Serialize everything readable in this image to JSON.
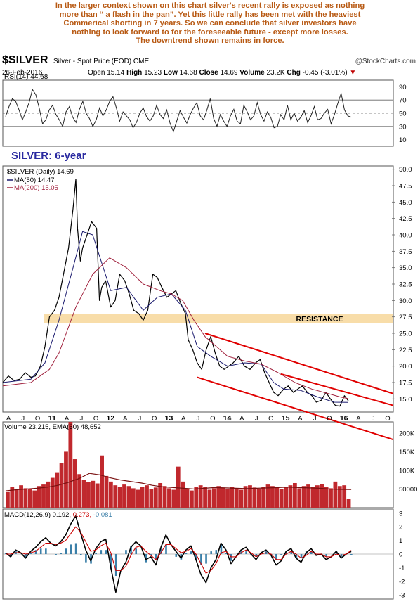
{
  "commentary": {
    "lines": [
      "In the larger context shown on this chart silver's recent rally is exposed as nothing",
      "more than “ a flash in the pan”. Yet this little rally has been met with the heaviest",
      "Commerical shorting in 7 years. So we can conclude that silver investors have",
      "nothing to look forward to for the foreseeable future - except more losses.",
      "The downtrend shown remains in force."
    ]
  },
  "header": {
    "symbol": "$SILVER",
    "description": "Silver - Spot Price (EOD)  CME",
    "copyright": "@StockCharts.com",
    "date": "26-Feb-2016",
    "open_label": "Open",
    "open": "15.14",
    "high_label": "High",
    "high": "15.23",
    "low_label": "Low",
    "low": "14.68",
    "close_label": "Close",
    "close": "14.69",
    "volume_label": "Volume",
    "volume": "23.2K",
    "chg_label": "Chg",
    "chg": "-0.45 (-3.01%)",
    "chg_marker": "▼"
  },
  "colors": {
    "commentary": "#b85a14",
    "price": "#000000",
    "ma50": "#1a1a6e",
    "ma200": "#a0203c",
    "channel": "#e00000",
    "resistance": "#f7d79a",
    "rsi_fill": "#808080",
    "volume": "#c0282d",
    "volume_ema": "#7a1010",
    "macd": "#000000",
    "macd_signal": "#cc0000",
    "macd_hist": "#3b7fa8",
    "title": "#2a2aa0"
  },
  "chart_data": [
    {
      "type": "line",
      "panel": "rsi",
      "legend": "RSI(14) 44.68",
      "y_ticks": [
        90,
        70,
        50,
        30,
        10
      ],
      "ylim": [
        0,
        100
      ],
      "reference_lines": [
        70,
        50,
        30
      ],
      "series": [
        {
          "values": [
            45,
            60,
            72,
            68,
            55,
            40,
            52,
            66,
            86,
            78,
            58,
            34,
            40,
            55,
            62,
            48,
            40,
            30,
            52,
            60,
            44,
            36,
            56,
            68,
            50,
            42,
            30,
            40,
            58,
            46,
            55,
            68,
            75,
            58,
            38,
            52,
            46,
            40,
            28,
            36,
            50,
            58,
            45,
            38,
            46,
            62,
            48,
            42,
            55,
            35,
            22,
            38,
            54,
            44,
            35,
            48,
            58,
            66,
            46,
            40,
            55,
            72,
            42,
            30,
            48,
            38,
            30,
            46,
            56,
            38,
            34,
            62,
            52,
            40,
            46,
            66,
            48,
            38,
            52,
            44,
            28,
            30,
            48,
            40,
            62,
            40,
            50,
            38,
            44,
            54,
            36,
            46,
            60,
            40,
            42,
            50,
            56,
            34,
            48,
            65,
            80,
            55,
            46,
            44
          ]
        }
      ]
    },
    {
      "type": "line",
      "panel": "price",
      "title": "SILVER: 6-year",
      "legend": [
        "$SILVER (Daily) 14.69",
        "MA(50) 14.47",
        "MA(200) 15.05"
      ],
      "annotation": "RESISTANCE",
      "resistance_band": [
        26.5,
        28.0
      ],
      "y_ticks": [
        50.0,
        47.5,
        45.0,
        42.5,
        40.0,
        37.5,
        35.0,
        32.5,
        30.0,
        27.5,
        25.0,
        22.5,
        20.0,
        17.5,
        15.0
      ],
      "ylim": [
        13.0,
        50.5
      ],
      "x_labels": [
        "A",
        "J",
        "O",
        "11",
        "A",
        "J",
        "O",
        "12",
        "A",
        "J",
        "O",
        "13",
        "A",
        "J",
        "O",
        "14",
        "A",
        "J",
        "O",
        "15",
        "A",
        "J",
        "O",
        "16",
        "A",
        "J",
        "O"
      ],
      "x_label_major": [
        "11",
        "12",
        "13",
        "14",
        "15",
        "16"
      ],
      "x_range": [
        2010.0,
        2016.95
      ],
      "series": [
        {
          "name": "$SILVER",
          "x": [
            2010.0,
            2010.1,
            2010.2,
            2010.3,
            2010.4,
            2010.5,
            2010.58,
            2010.67,
            2010.75,
            2010.83,
            2010.92,
            2011.0,
            2011.08,
            2011.17,
            2011.25,
            2011.3,
            2011.33,
            2011.38,
            2011.42,
            2011.5,
            2011.58,
            2011.67,
            2011.72,
            2011.76,
            2011.83,
            2011.92,
            2012.0,
            2012.08,
            2012.17,
            2012.25,
            2012.33,
            2012.42,
            2012.5,
            2012.58,
            2012.67,
            2012.75,
            2012.83,
            2012.92,
            2013.0,
            2013.08,
            2013.17,
            2013.25,
            2013.3,
            2013.38,
            2013.46,
            2013.54,
            2013.62,
            2013.7,
            2013.78,
            2013.86,
            2013.94,
            2014.02,
            2014.1,
            2014.2,
            2014.3,
            2014.4,
            2014.5,
            2014.58,
            2014.66,
            2014.74,
            2014.82,
            2014.9,
            2015.0,
            2015.08,
            2015.17,
            2015.25,
            2015.33,
            2015.42,
            2015.5,
            2015.58,
            2015.67,
            2015.75,
            2015.83,
            2015.92,
            2016.0,
            2016.08,
            2016.15
          ],
          "y": [
            17.5,
            18.5,
            17.8,
            18.0,
            19.0,
            18.3,
            18.5,
            20.0,
            23.0,
            27.5,
            28.5,
            30.5,
            34.0,
            38.0,
            44.0,
            48.5,
            41.0,
            36.0,
            38.0,
            40.0,
            42.0,
            41.0,
            30.0,
            32.0,
            33.0,
            29.0,
            30.0,
            34.0,
            33.0,
            31.0,
            28.5,
            28.0,
            27.0,
            28.5,
            34.0,
            33.5,
            32.0,
            30.5,
            31.0,
            31.5,
            29.5,
            28.0,
            24.0,
            22.5,
            20.5,
            19.5,
            22.5,
            24.5,
            22.0,
            20.0,
            19.5,
            20.0,
            20.5,
            21.5,
            20.0,
            19.5,
            20.5,
            21.0,
            19.0,
            17.5,
            16.0,
            15.5,
            16.5,
            17.0,
            16.0,
            16.5,
            17.0,
            16.0,
            15.5,
            14.5,
            14.8,
            16.0,
            15.0,
            14.0,
            13.9,
            15.5,
            14.69
          ]
        },
        {
          "name": "MA(50)",
          "x": [
            2010.0,
            2010.5,
            2010.75,
            2011.0,
            2011.25,
            2011.42,
            2011.6,
            2011.75,
            2011.92,
            2012.2,
            2012.5,
            2012.75,
            2013.0,
            2013.25,
            2013.46,
            2013.7,
            2014.0,
            2014.3,
            2014.6,
            2014.82,
            2015.0,
            2015.3,
            2015.6,
            2015.9,
            2016.15
          ],
          "y": [
            17.5,
            18.0,
            20.5,
            27.0,
            35.0,
            40.5,
            40.0,
            36.0,
            31.5,
            32.0,
            28.5,
            30.5,
            31.0,
            28.5,
            23.0,
            21.5,
            20.0,
            20.5,
            20.3,
            17.5,
            16.5,
            16.3,
            15.3,
            14.5,
            14.47
          ]
        },
        {
          "name": "MA(200)",
          "x": [
            2010.0,
            2010.5,
            2010.83,
            2011.0,
            2011.3,
            2011.6,
            2011.9,
            2012.2,
            2012.5,
            2012.8,
            2013.0,
            2013.2,
            2013.4,
            2013.6,
            2013.8,
            2014.0,
            2014.3,
            2014.6,
            2014.9,
            2015.2,
            2015.5,
            2015.8,
            2016.0,
            2016.15
          ],
          "y": [
            17.0,
            17.5,
            19.5,
            22.0,
            29.0,
            34.0,
            36.5,
            35.0,
            32.5,
            31.5,
            31.0,
            30.0,
            27.0,
            24.5,
            23.0,
            21.5,
            20.8,
            20.3,
            19.0,
            17.5,
            16.5,
            15.8,
            15.3,
            15.05
          ]
        }
      ],
      "channel_lines": [
        {
          "x": [
            2013.6,
            2016.95
          ],
          "y": [
            25.0,
            15.8
          ]
        },
        {
          "x": [
            2013.46,
            2016.95
          ],
          "y": [
            18.3,
            8.8
          ]
        },
        {
          "x": [
            2014.95,
            2016.95
          ],
          "y": [
            18.8,
            14.0
          ]
        }
      ]
    },
    {
      "type": "bar",
      "panel": "volume",
      "legend": "Volume 23,215, EMA(60) 48,652",
      "y_ticks": [
        "200K",
        "150K",
        "100K",
        "50000"
      ],
      "y_tick_values": [
        200000,
        150000,
        100000,
        50000
      ],
      "ylim": [
        0,
        230000
      ],
      "values": [
        42000,
        55000,
        48000,
        60000,
        52000,
        50000,
        46000,
        58000,
        62000,
        70000,
        80000,
        95000,
        120000,
        150000,
        230000,
        130000,
        90000,
        75000,
        68000,
        72000,
        65000,
        140000,
        85000,
        70000,
        60000,
        55000,
        62000,
        58000,
        52000,
        48000,
        55000,
        60000,
        50000,
        54000,
        66000,
        58000,
        52000,
        48000,
        110000,
        70000,
        52000,
        46000,
        56000,
        60000,
        55000,
        48000,
        52000,
        58000,
        54000,
        50000,
        56000,
        52000,
        48000,
        58000,
        60000,
        54000,
        50000,
        56000,
        62000,
        58000,
        54000,
        50000,
        56000,
        60000,
        66000,
        52000,
        58000,
        62000,
        55000,
        60000,
        64000,
        56000,
        52000,
        70000,
        58000,
        60000,
        23215
      ],
      "ema_values": [
        45000,
        48000,
        50000,
        52000,
        55000,
        60000,
        68000,
        78000,
        92000,
        88000,
        80000,
        74000,
        70000,
        66000,
        60000,
        56000,
        54000,
        52000,
        50000,
        52000,
        54000,
        53000,
        52000,
        51000,
        52000,
        53000,
        54000,
        55000,
        54000,
        53000,
        52000,
        50000,
        49000,
        48652
      ]
    },
    {
      "type": "line",
      "panel": "macd",
      "legend": [
        "MACD(12,26,9) 0.192, ",
        "0.273, ",
        "-0.081"
      ],
      "y_ticks": [
        3,
        2,
        1,
        0,
        -1,
        -2,
        -3
      ],
      "ylim": [
        -3.3,
        3.3
      ],
      "series": [
        {
          "name": "MACD",
          "values": [
            0.1,
            -0.2,
            0.3,
            0.1,
            -0.3,
            0.2,
            0.5,
            0.9,
            1.2,
            0.8,
            0.6,
            0.9,
            1.4,
            2.2,
            2.8,
            1.5,
            0.3,
            -0.5,
            0.4,
            0.9,
            1.1,
            -1.0,
            -2.8,
            -1.2,
            -0.6,
            0.5,
            0.9,
            0.6,
            -0.4,
            -0.2,
            -0.8,
            0.5,
            1.4,
            0.7,
            0.2,
            -0.3,
            0.3,
            0.6,
            -0.4,
            -1.5,
            -2.1,
            -1.0,
            -0.4,
            0.8,
            0.3,
            -0.7,
            -0.2,
            0.3,
            0.5,
            0.0,
            -0.4,
            0.1,
            0.3,
            -0.1,
            -0.8,
            -0.5,
            0.2,
            0.4,
            -0.3,
            -0.6,
            0.1,
            0.4,
            -0.1,
            0.0,
            -0.4,
            -0.2,
            0.2,
            -0.3,
            0.0,
            0.192
          ]
        },
        {
          "name": "Signal",
          "values": [
            0.0,
            0.0,
            0.1,
            0.1,
            0.0,
            0.1,
            0.2,
            0.5,
            0.8,
            0.8,
            0.7,
            0.8,
            1.0,
            1.5,
            2.0,
            1.6,
            0.9,
            0.2,
            0.3,
            0.6,
            0.8,
            0.1,
            -1.2,
            -1.2,
            -0.9,
            -0.1,
            0.5,
            0.6,
            0.2,
            -0.1,
            -0.4,
            0.1,
            0.7,
            0.7,
            0.4,
            0.1,
            0.2,
            0.4,
            0.0,
            -0.7,
            -1.4,
            -1.2,
            -0.7,
            0.1,
            0.2,
            -0.2,
            -0.2,
            0.1,
            0.3,
            0.1,
            -0.2,
            0.0,
            0.1,
            0.0,
            -0.4,
            -0.4,
            0.0,
            0.2,
            0.0,
            -0.3,
            -0.1,
            0.2,
            0.0,
            0.0,
            -0.2,
            -0.2,
            0.0,
            -0.1,
            0.0,
            0.273
          ]
        }
      ],
      "histogram": [
        0.1,
        -0.2,
        0.2,
        0.0,
        -0.3,
        0.1,
        0.3,
        0.4,
        0.4,
        0.0,
        -0.1,
        0.1,
        0.4,
        0.7,
        0.8,
        -0.1,
        -0.6,
        -0.7,
        0.1,
        0.3,
        0.3,
        -1.1,
        -1.6,
        0.0,
        0.3,
        0.6,
        0.4,
        0.0,
        -0.6,
        -0.1,
        -0.4,
        0.4,
        0.7,
        0.0,
        -0.2,
        -0.4,
        0.1,
        0.2,
        -0.4,
        -0.8,
        -0.7,
        0.2,
        0.3,
        0.7,
        0.1,
        -0.5,
        0.0,
        0.2,
        0.2,
        -0.1,
        -0.2,
        0.1,
        0.2,
        -0.1,
        -0.4,
        -0.1,
        0.2,
        0.2,
        -0.3,
        -0.3,
        0.2,
        0.2,
        -0.1,
        0.0,
        -0.2,
        0.0,
        0.2,
        -0.2,
        0.0,
        -0.081
      ]
    }
  ]
}
